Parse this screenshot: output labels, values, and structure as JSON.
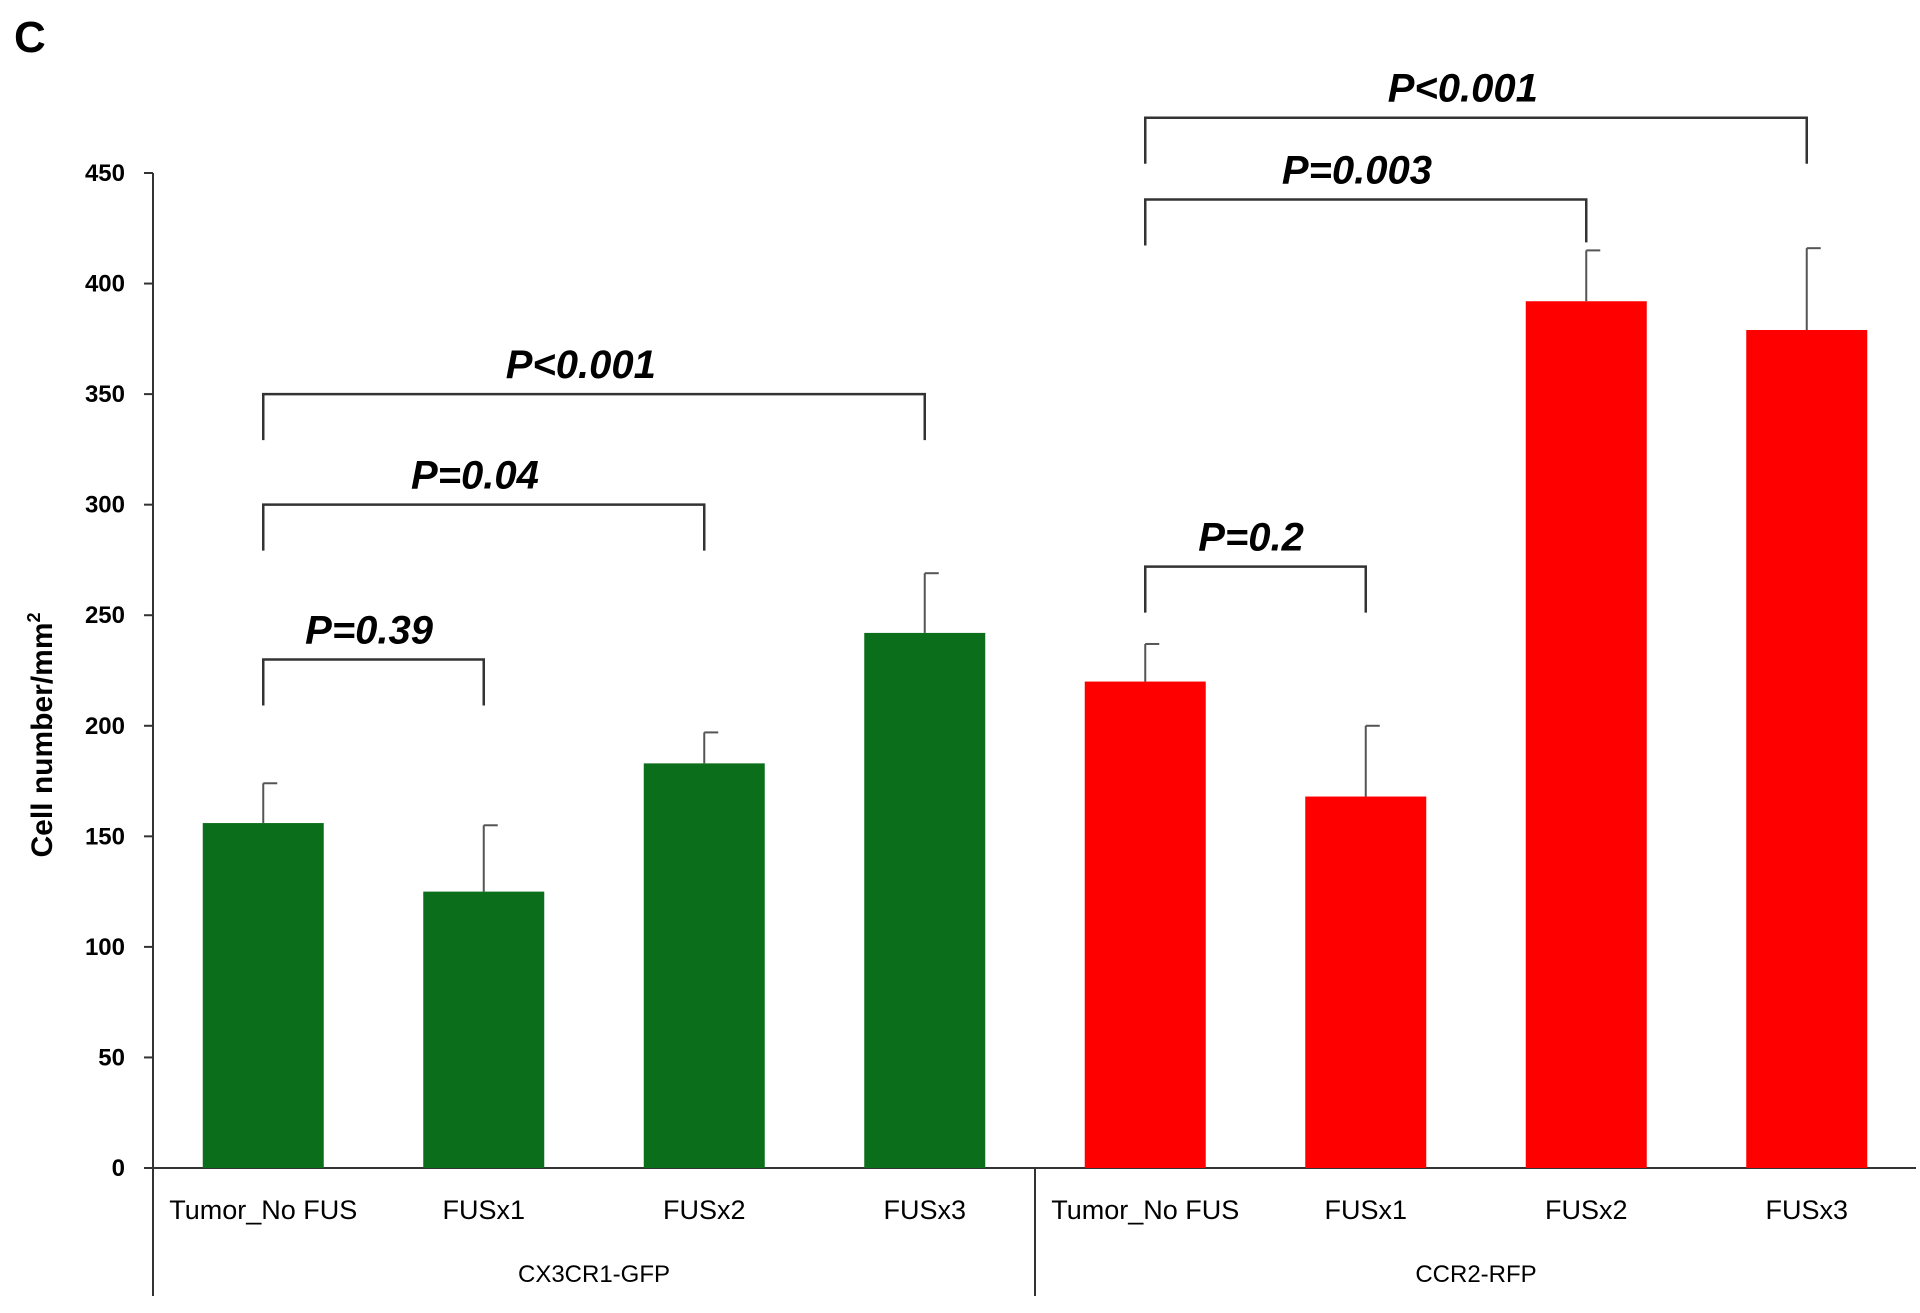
{
  "panel_label": "C",
  "chart_data": {
    "type": "bar",
    "ylabel": "Cell number/mm²",
    "ylabel_text": "Cell number/mm",
    "ylabel_sup": "2",
    "ylim": [
      0,
      450
    ],
    "yticks": [
      0,
      50,
      100,
      150,
      200,
      250,
      300,
      350,
      400,
      450
    ],
    "grid": false,
    "groups": [
      {
        "name": "CX3CR1-GFP",
        "color": "#0b6e1a",
        "categories": [
          "Tumor_No FUS",
          "FUSx1",
          "FUSx2",
          "FUSx3"
        ],
        "values": [
          156,
          125,
          183,
          242
        ],
        "errors": [
          18,
          30,
          14,
          27
        ]
      },
      {
        "name": "CCR2-RFP",
        "color": "#ff0000",
        "categories": [
          "Tumor_No FUS",
          "FUSx1",
          "FUSx2",
          "FUSx3"
        ],
        "values": [
          220,
          168,
          392,
          379
        ],
        "errors": [
          17,
          32,
          23,
          37
        ]
      }
    ],
    "comparisons": [
      {
        "label": "P=0.39",
        "group": 0,
        "from": 0,
        "to": 1,
        "level": 230
      },
      {
        "label": "P=0.04",
        "group": 0,
        "from": 0,
        "to": 2,
        "level": 300
      },
      {
        "label": "P<0.001",
        "group": 0,
        "from": 0,
        "to": 3,
        "level": 350
      },
      {
        "label": "P=0.2",
        "group": 1,
        "from": 0,
        "to": 1,
        "level": 272
      },
      {
        "label": "P=0.003",
        "group": 1,
        "from": 0,
        "to": 2,
        "level": 438
      },
      {
        "label": "P<0.001",
        "group": 1,
        "from": 0,
        "to": 3,
        "level": 475
      }
    ]
  }
}
